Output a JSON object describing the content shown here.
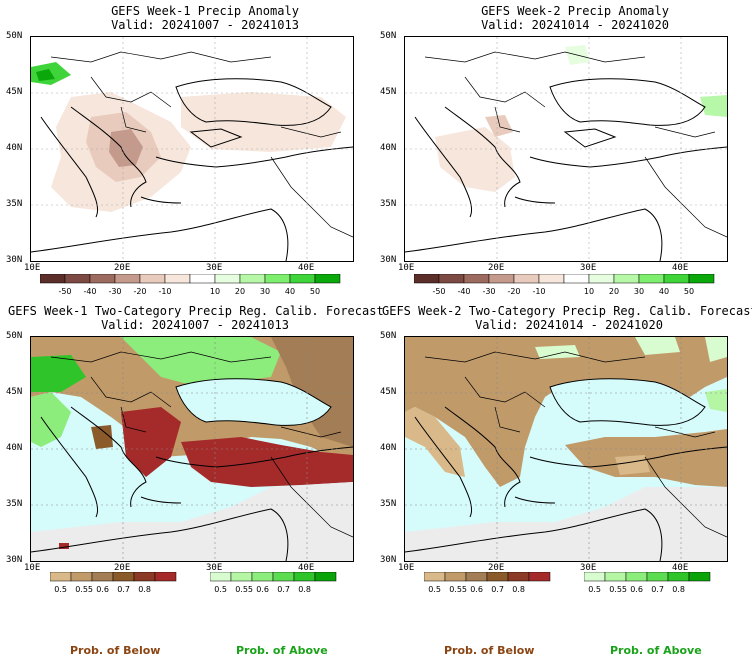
{
  "panels": [
    {
      "id": "w1-anom",
      "title": "GEFS Week-1 Precip Anomaly",
      "valid": "Valid: 20241007 - 20241013",
      "lat_labels": [
        "50N",
        "45N",
        "40N",
        "35N",
        "30N"
      ],
      "lon_labels": [
        "10E",
        "20E",
        "30E",
        "40E"
      ]
    },
    {
      "id": "w2-anom",
      "title": "GEFS Week-2 Precip Anomaly",
      "valid": "Valid: 20241014 - 20241020",
      "lat_labels": [
        "50N",
        "45N",
        "40N",
        "35N",
        "30N"
      ],
      "lon_labels": [
        "10E",
        "20E",
        "30E",
        "40E"
      ]
    },
    {
      "id": "w1-prob",
      "title": "GEFS Week-1 Two-Category Precip Reg. Calib. Forecast",
      "valid": "Valid: 20241007 - 20241013",
      "lat_labels": [
        "50N",
        "45N",
        "40N",
        "35N",
        "30N"
      ],
      "lon_labels": [
        "10E",
        "20E",
        "30E",
        "40E"
      ]
    },
    {
      "id": "w2-prob",
      "title": "GEFS Week-2 Two-Category Precip Reg. Calib. Forecast",
      "valid": "Valid: 20241014 - 20241020",
      "lat_labels": [
        "50N",
        "45N",
        "40N",
        "35N",
        "30N"
      ],
      "lon_labels": [
        "10E",
        "20E",
        "30E",
        "40E"
      ]
    }
  ],
  "anomaly_colorbar": {
    "labels": [
      "-50",
      "-40",
      "-30",
      "-20",
      "-10",
      "10",
      "20",
      "30",
      "40",
      "50"
    ],
    "colors": [
      "#5b2e2a",
      "#7c4a42",
      "#9c6a5e",
      "#c49a8c",
      "#e8cbbc",
      "#f6e6dc",
      "#ffffff",
      "#e6fde0",
      "#b6f8a8",
      "#7eee6e",
      "#3fd43a",
      "#0aa80a"
    ]
  },
  "below_colorbar": {
    "labels": [
      "0.5",
      "0.55",
      "0.6",
      "0.7",
      "0.8"
    ],
    "colors": [
      "#d9b98a",
      "#c19a6a",
      "#a27d55",
      "#8b5a2b",
      "#8b3a25",
      "#a52a2a"
    ]
  },
  "above_colorbar": {
    "labels": [
      "0.5",
      "0.55",
      "0.6",
      "0.7",
      "0.8"
    ],
    "colors": [
      "#d8fcd0",
      "#b5f6a5",
      "#8cec7c",
      "#5cdc50",
      "#2ec42a",
      "#0aa30a"
    ]
  },
  "footer": {
    "below": "Prob. of Below",
    "above": "Prob. of Above"
  },
  "colors": {
    "below_text": "#8b4513",
    "above_text": "#1aa31a",
    "sea": "#d6fbfb",
    "no_forecast": "#ececec"
  }
}
